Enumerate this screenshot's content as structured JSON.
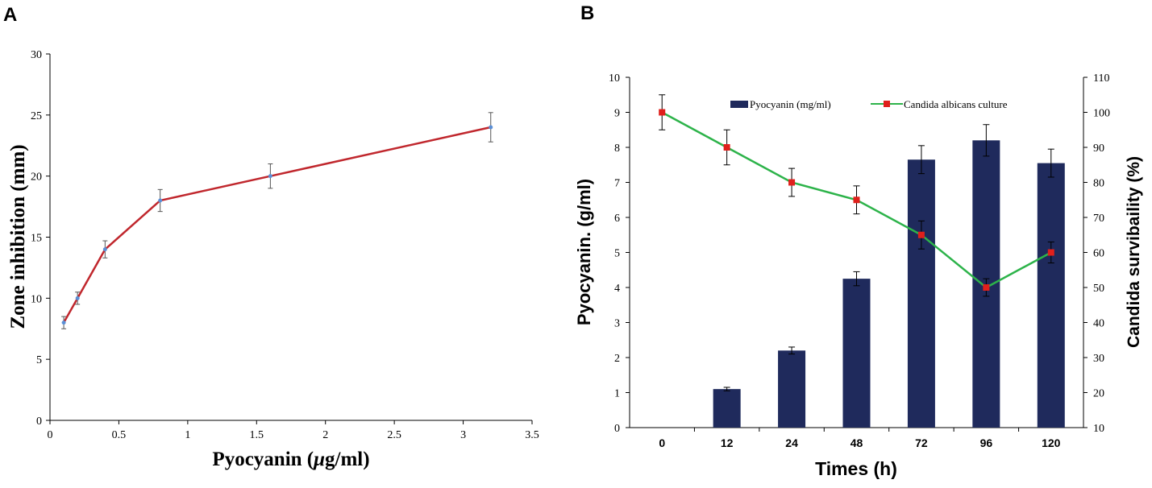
{
  "panels": {
    "a": "A",
    "b": "B"
  },
  "chart_data": [
    {
      "type": "line",
      "panel": "A",
      "title": "",
      "xlabel_main": "Pyocyanin (",
      "xlabel_mu": "μ",
      "xlabel_rest": "g/ml)",
      "ylabel": "Zone inhibition (mm)",
      "xlim": [
        0,
        3.5
      ],
      "ylim": [
        0,
        30
      ],
      "xticks": [
        "0",
        "0.5",
        "1",
        "1.5",
        "2",
        "2.5",
        "3",
        "3.5"
      ],
      "xtick_values": [
        0,
        0.5,
        1,
        1.5,
        2,
        2.5,
        3,
        3.5
      ],
      "yticks": [
        "0",
        "5",
        "10",
        "15",
        "20",
        "25",
        "30"
      ],
      "ytick_values": [
        0,
        5,
        10,
        15,
        20,
        25,
        30
      ],
      "x": [
        0.1,
        0.2,
        0.4,
        0.8,
        1.6,
        3.2
      ],
      "y": [
        8,
        10,
        14,
        18,
        20,
        24
      ],
      "errors": [
        0.5,
        0.5,
        0.7,
        0.9,
        1.0,
        1.2
      ],
      "line_color": "#c0272d",
      "marker_color": "#5b8fd6"
    },
    {
      "type": "bar",
      "panel": "B",
      "categories": [
        "0",
        "12",
        "24",
        "48",
        "72",
        "96",
        "120"
      ],
      "xlabel": "Times (h)",
      "ylabel_left": "Pyocyanin. (g/ml)",
      "ylabel_right": "Candida survibaility (%)",
      "ylim_left": [
        0,
        10
      ],
      "ylim_right": [
        10,
        110
      ],
      "yticks_left": [
        "0",
        "1",
        "2",
        "3",
        "4",
        "5",
        "6",
        "7",
        "8",
        "9",
        "10"
      ],
      "yticks_right": [
        "10",
        "20",
        "30",
        "40",
        "50",
        "60",
        "70",
        "80",
        "90",
        "100",
        "110"
      ],
      "series": [
        {
          "name": "Pyocyanin (mg/ml)",
          "kind": "bar",
          "axis": "left",
          "values": [
            0,
            1.1,
            2.2,
            4.25,
            7.65,
            8.2,
            7.55
          ],
          "errors": [
            0,
            0.05,
            0.1,
            0.2,
            0.4,
            0.45,
            0.4
          ],
          "color": "#1f2a5c"
        },
        {
          "name": "Candida albicans culture",
          "kind": "line",
          "axis": "right",
          "values": [
            100,
            90,
            80,
            75,
            65,
            50,
            60
          ],
          "errors": [
            5,
            5,
            4,
            4,
            4,
            2.5,
            3
          ],
          "color": "#2db34a",
          "marker_color": "#e0201c"
        }
      ]
    }
  ]
}
